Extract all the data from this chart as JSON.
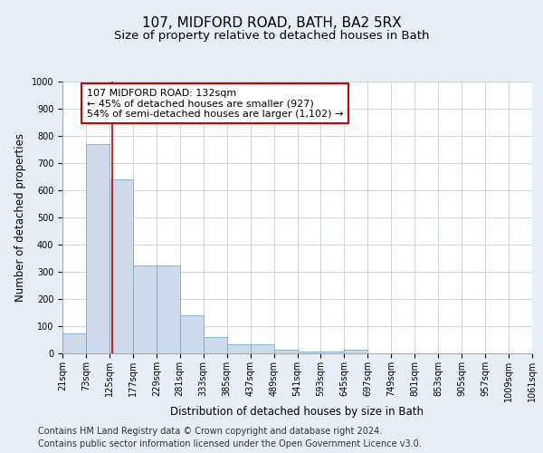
{
  "title": "107, MIDFORD ROAD, BATH, BA2 5RX",
  "subtitle": "Size of property relative to detached houses in Bath",
  "xlabel": "Distribution of detached houses by size in Bath",
  "ylabel": "Number of detached properties",
  "bin_edges": [
    21,
    73,
    125,
    177,
    229,
    281,
    333,
    385,
    437,
    489,
    541,
    593,
    645,
    697,
    749,
    801,
    853,
    905,
    957,
    1009,
    1061
  ],
  "bar_heights": [
    75,
    770,
    640,
    325,
    325,
    140,
    60,
    35,
    35,
    15,
    8,
    8,
    15,
    0,
    0,
    0,
    0,
    0,
    0,
    0
  ],
  "bar_color": "#ccdaeb",
  "bar_edge_color": "#7aaac8",
  "red_line_x": 132,
  "red_line_color": "#cc0000",
  "annotation_text": "107 MIDFORD ROAD: 132sqm\n← 45% of detached houses are smaller (927)\n54% of semi-detached houses are larger (1,102) →",
  "annotation_box_color": "#ffffff",
  "annotation_box_edge_color": "#cc0000",
  "ylim": [
    0,
    1000
  ],
  "yticks": [
    0,
    100,
    200,
    300,
    400,
    500,
    600,
    700,
    800,
    900,
    1000
  ],
  "background_color": "#e8eef5",
  "plot_background": "#ffffff",
  "footer_line1": "Contains HM Land Registry data © Crown copyright and database right 2024.",
  "footer_line2": "Contains public sector information licensed under the Open Government Licence v3.0.",
  "title_fontsize": 11,
  "subtitle_fontsize": 9.5,
  "axis_label_fontsize": 8.5,
  "tick_fontsize": 7,
  "annotation_fontsize": 8,
  "footer_fontsize": 7
}
